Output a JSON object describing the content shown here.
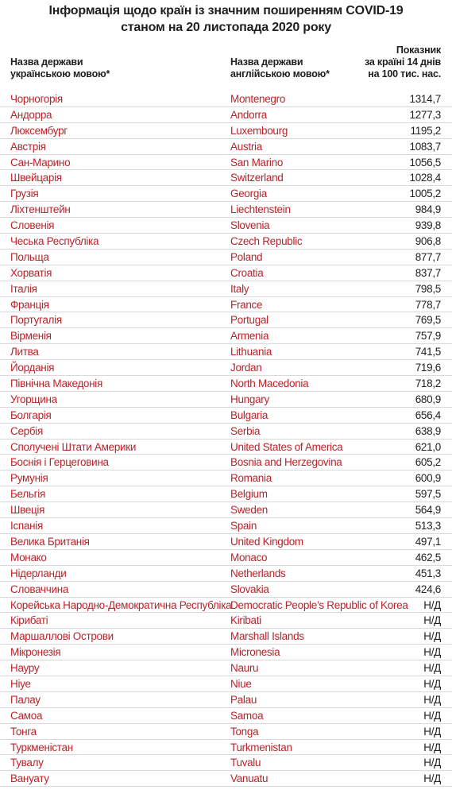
{
  "title": {
    "line1": "Інформація щодо країн із значним поширенням COVID-19",
    "line2": "станом на 20 листопада 2020 року"
  },
  "headers": {
    "ua": [
      "Назва держави",
      "українською мовою*"
    ],
    "en": [
      "Назва держави",
      "англійською мовою*"
    ],
    "value": [
      "Показник",
      "за країні 14 днів",
      "на 100 тис. нас."
    ]
  },
  "colors": {
    "country_text": "#b8242a",
    "value_text": "#222222",
    "row_divider": "#d9d9d9"
  },
  "rows": [
    {
      "ua": "Чорногорія",
      "en": "Montenegro",
      "value": "1314,7"
    },
    {
      "ua": "Андорра",
      "en": "Andorra",
      "value": "1277,3"
    },
    {
      "ua": "Люксембург",
      "en": "Luxembourg",
      "value": "1195,2"
    },
    {
      "ua": "Австрія",
      "en": "Austria",
      "value": "1083,7"
    },
    {
      "ua": "Сан-Марино",
      "en": "San Marino",
      "value": "1056,5"
    },
    {
      "ua": "Швейцарія",
      "en": "Switzerland",
      "value": "1028,4"
    },
    {
      "ua": "Грузія",
      "en": "Georgia",
      "value": "1005,2"
    },
    {
      "ua": "Ліхтенштейн",
      "en": "Liechtenstein",
      "value": "984,9"
    },
    {
      "ua": "Словенія",
      "en": "Slovenia",
      "value": "939,8"
    },
    {
      "ua": "Чеська Республіка",
      "en": "Czech Republic",
      "value": "906,8"
    },
    {
      "ua": "Польща",
      "en": "Poland",
      "value": "877,7"
    },
    {
      "ua": "Хорватія",
      "en": "Croatia",
      "value": "837,7"
    },
    {
      "ua": "Італія",
      "en": "Italy",
      "value": "798,5"
    },
    {
      "ua": "Франція",
      "en": "France",
      "value": "778,7"
    },
    {
      "ua": "Португалія",
      "en": "Portugal",
      "value": "769,5"
    },
    {
      "ua": "Вірменія",
      "en": "Armenia",
      "value": "757,9"
    },
    {
      "ua": "Литва",
      "en": "Lithuania",
      "value": "741,5"
    },
    {
      "ua": "Йорданія",
      "en": "Jordan",
      "value": "719,6"
    },
    {
      "ua": "Північна Македонія",
      "en": "North Macedonia",
      "value": "718,2"
    },
    {
      "ua": "Угорщина",
      "en": "Hungary",
      "value": "680,9"
    },
    {
      "ua": "Болгарія",
      "en": "Bulgaria",
      "value": "656,4"
    },
    {
      "ua": "Сербія",
      "en": "Serbia",
      "value": "638,9"
    },
    {
      "ua": "Сполучені Штати Америки",
      "en": "United States of America",
      "value": "621,0"
    },
    {
      "ua": "Боснія і Герцеговина",
      "en": "Bosnia and Herzegovina",
      "value": "605,2"
    },
    {
      "ua": "Румунія",
      "en": "Romania",
      "value": "600,9"
    },
    {
      "ua": "Бельгія",
      "en": "Belgium",
      "value": "597,5"
    },
    {
      "ua": "Швеція",
      "en": "Sweden",
      "value": "564,9"
    },
    {
      "ua": "Іспанія",
      "en": "Spain",
      "value": "513,3"
    },
    {
      "ua": "Велика Британія",
      "en": "United Kingdom",
      "value": "497,1"
    },
    {
      "ua": "Монако",
      "en": "Monaco",
      "value": "462,5"
    },
    {
      "ua": "Нідерланди",
      "en": "Netherlands",
      "value": "451,3"
    },
    {
      "ua": "Словаччина",
      "en": "Slovakia",
      "value": "424,6"
    },
    {
      "ua": "Корейська Народно-Демократична Республіка",
      "en": "Democratic People’s Republic of Korea",
      "value": "Н/Д"
    },
    {
      "ua": "Кірибаті",
      "en": "Kiribati",
      "value": "Н/Д"
    },
    {
      "ua": "Маршаллові Острови",
      "en": "Marshall Islands",
      "value": "Н/Д"
    },
    {
      "ua": "Мікронезія",
      "en": "Micronesia",
      "value": "Н/Д"
    },
    {
      "ua": "Науру",
      "en": "Nauru",
      "value": "Н/Д"
    },
    {
      "ua": "Ніуе",
      "en": "Niue",
      "value": "Н/Д"
    },
    {
      "ua": "Палау",
      "en": "Palau",
      "value": "Н/Д"
    },
    {
      "ua": "Самоа",
      "en": "Samoa",
      "value": "Н/Д"
    },
    {
      "ua": "Тонга",
      "en": "Tonga",
      "value": "Н/Д"
    },
    {
      "ua": "Туркменістан",
      "en": "Turkmenistan",
      "value": "Н/Д"
    },
    {
      "ua": "Тувалу",
      "en": "Tuvalu",
      "value": "Н/Д"
    },
    {
      "ua": "Вануату",
      "en": "Vanuatu",
      "value": "Н/Д"
    }
  ]
}
